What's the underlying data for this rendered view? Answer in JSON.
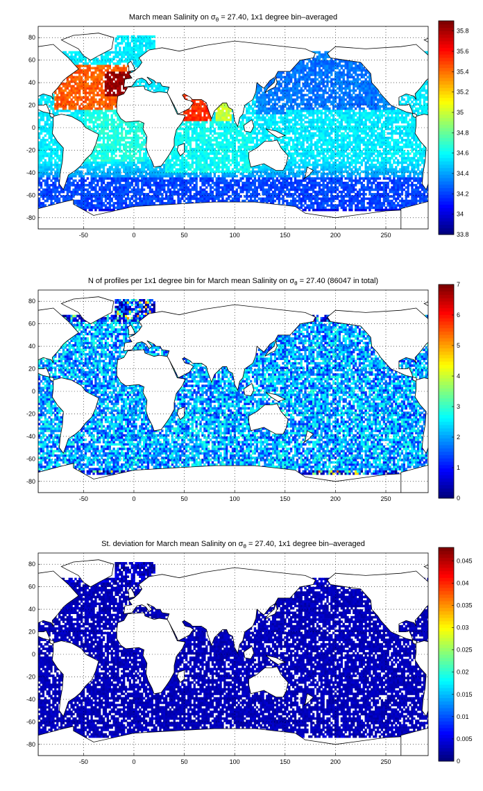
{
  "chart_data": [
    {
      "type": "heatmap",
      "title": "March mean Salinity on σθ = 27.40, 1x1 degree bin–averaged",
      "title_parts": {
        "pre": "March mean Salinity on ",
        "sigma": "σ",
        "sub": "θ",
        "post": " = 27.40, 1x1 degree bin–averaged"
      },
      "xlabel": "",
      "ylabel": "",
      "xlim": [
        -95,
        292
      ],
      "ylim": [
        -90,
        90
      ],
      "xticks": [
        -50,
        0,
        50,
        100,
        150,
        200,
        250
      ],
      "yticks": [
        -80,
        -60,
        -40,
        -20,
        0,
        20,
        40,
        60,
        80
      ],
      "grid": true,
      "colorbar": {
        "min": 33.8,
        "max": 35.9,
        "ticks": [
          33.8,
          34,
          34.2,
          34.4,
          34.6,
          34.8,
          35,
          35.2,
          35.4,
          35.6,
          35.8
        ]
      },
      "field": "salinity",
      "regions": [
        {
          "name": "North Atlantic subtropical",
          "lon": [
            -80,
            -5
          ],
          "lat": [
            15,
            55
          ],
          "value": 35.45
        },
        {
          "name": "Mediterranean outflow",
          "lon": [
            -30,
            -5
          ],
          "lat": [
            28,
            48
          ],
          "value": 35.85
        },
        {
          "name": "Arabian Sea",
          "lon": [
            45,
            75
          ],
          "lat": [
            5,
            28
          ],
          "value": 35.55
        },
        {
          "name": "Bay of Bengal",
          "lon": [
            80,
            95
          ],
          "lat": [
            5,
            22
          ],
          "value": 35.0
        },
        {
          "name": "Tropical Atlantic",
          "lon": [
            -50,
            10
          ],
          "lat": [
            -30,
            15
          ],
          "value": 34.65
        },
        {
          "name": "Indian Ocean south",
          "lon": [
            30,
            115
          ],
          "lat": [
            -40,
            5
          ],
          "value": 34.6
        },
        {
          "name": "North Pacific",
          "lon": [
            130,
            240
          ],
          "lat": [
            15,
            60
          ],
          "value": 34.3
        },
        {
          "name": "Tropical Pacific",
          "lon": [
            150,
            285
          ],
          "lat": [
            -30,
            15
          ],
          "value": 34.55
        },
        {
          "name": "Southern Ocean",
          "lon": [
            -95,
            292
          ],
          "lat": [
            -72,
            -45
          ],
          "value": 34.2
        }
      ]
    },
    {
      "type": "heatmap",
      "title": "N of profiles per 1x1 degree bin for March mean Salinity on σθ = 27.40 (86047 in total)",
      "title_parts": {
        "pre": "N of profiles per 1x1 degree bin for March mean Salinity on ",
        "sigma": "σ",
        "sub": "θ",
        "post": " = 27.40 (86047 in total)"
      },
      "xlabel": "",
      "ylabel": "",
      "xlim": [
        -95,
        292
      ],
      "ylim": [
        -90,
        90
      ],
      "xticks": [
        -50,
        0,
        50,
        100,
        150,
        200,
        250
      ],
      "yticks": [
        -80,
        -60,
        -40,
        -20,
        0,
        20,
        40,
        60,
        80
      ],
      "grid": true,
      "total_profiles": 86047,
      "colorbar": {
        "min": 0,
        "max": 7,
        "ticks": [
          0,
          1,
          2,
          3,
          4,
          5,
          6,
          7
        ]
      },
      "field": "count",
      "regions": [
        {
          "name": "Kuroshio region",
          "lon": [
            125,
            165
          ],
          "lat": [
            20,
            45
          ],
          "value": 7
        },
        {
          "name": "Arabian Sea",
          "lon": [
            50,
            70
          ],
          "lat": [
            10,
            25
          ],
          "value": 6
        },
        {
          "name": "Bay of Bengal",
          "lon": [
            82,
            95
          ],
          "lat": [
            8,
            20
          ],
          "value": 5
        },
        {
          "name": "North Atlantic",
          "lon": [
            -80,
            -10
          ],
          "lat": [
            15,
            50
          ],
          "value": 4
        },
        {
          "name": "Open ocean",
          "lon": [
            -95,
            292
          ],
          "lat": [
            -70,
            60
          ],
          "value": 2.5
        }
      ]
    },
    {
      "type": "heatmap",
      "title": "St. deviation for March mean Salinity on σθ = 27.40, 1x1 degree bin–averaged",
      "title_parts": {
        "pre": "St. deviation for March mean Salinity on ",
        "sigma": "σ",
        "sub": "θ",
        "post": " = 27.40, 1x1 degree bin–averaged"
      },
      "xlabel": "",
      "ylabel": "",
      "xlim": [
        -95,
        292
      ],
      "ylim": [
        -90,
        90
      ],
      "xticks": [
        -50,
        0,
        50,
        100,
        150,
        200,
        250
      ],
      "yticks": [
        -80,
        -60,
        -40,
        -20,
        0,
        20,
        40,
        60,
        80
      ],
      "grid": true,
      "colorbar": {
        "min": 0,
        "max": 0.048,
        "ticks": [
          0,
          0.005,
          0.01,
          0.015,
          0.02,
          0.025,
          0.03,
          0.035,
          0.04,
          0.045
        ]
      },
      "field": "stdev",
      "regions": [
        {
          "name": "North Atlantic / Mediterranean outflow",
          "lon": [
            -45,
            -5
          ],
          "lat": [
            28,
            58
          ],
          "value": 0.046
        },
        {
          "name": "Arabian Sea",
          "lon": [
            50,
            75
          ],
          "lat": [
            0,
            25
          ],
          "value": 0.02
        },
        {
          "name": "Southern Ocean front",
          "lon": [
            -60,
            200
          ],
          "lat": [
            -60,
            -45
          ],
          "value": 0.012
        },
        {
          "name": "Elsewhere",
          "lon": [
            -95,
            292
          ],
          "lat": [
            -72,
            60
          ],
          "value": 0.003
        }
      ]
    }
  ]
}
